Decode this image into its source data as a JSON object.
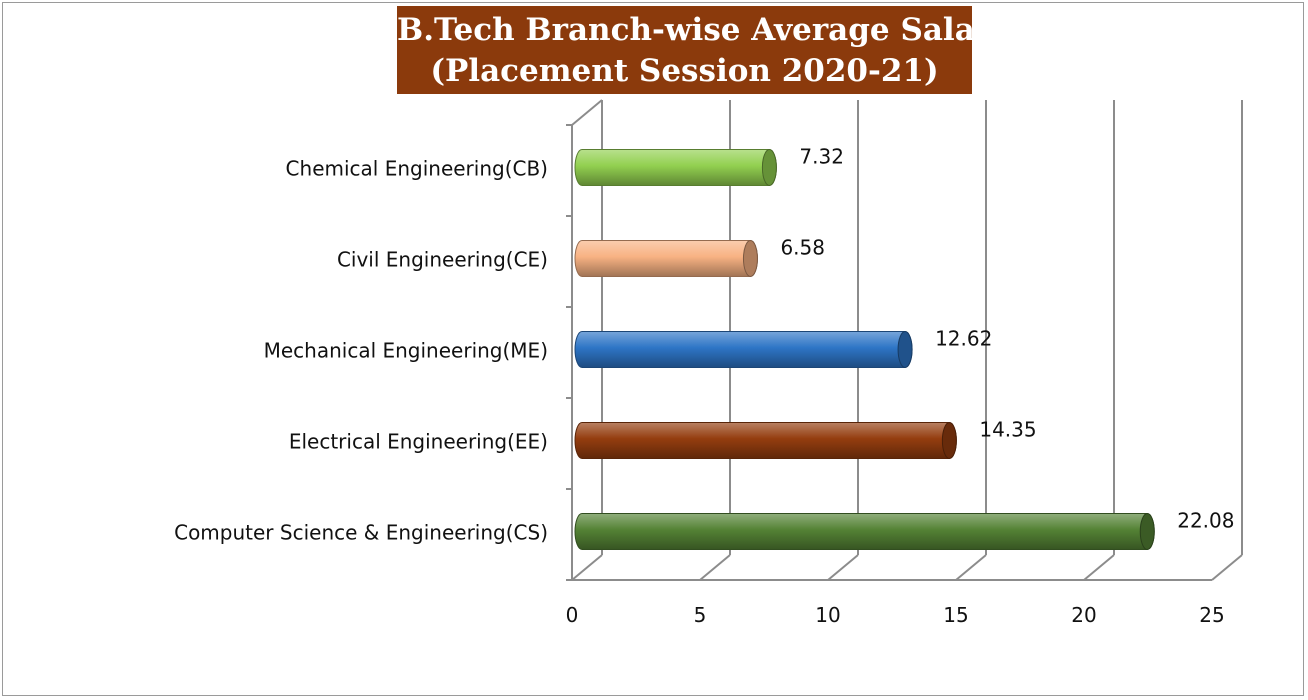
{
  "chart_data": {
    "type": "bar",
    "orientation": "horizontal",
    "title_line1": "B.Tech Branch-wise Average Salary",
    "title_line2": "(Placement Session 2020-21)",
    "categories": [
      "Chemical Engineering(CB)",
      "Civil Engineering(CE)",
      "Mechanical Engineering(ME)",
      "Electrical Engineering(EE)",
      "Computer Science & Engineering(CS)"
    ],
    "values": [
      7.32,
      6.58,
      12.62,
      14.35,
      22.08
    ],
    "value_labels": [
      "7.32",
      "6.58",
      "12.62",
      "14.35",
      "22.08"
    ],
    "colors": [
      "#92d050",
      "#f8b283",
      "#2e75c6",
      "#943d0f",
      "#548235"
    ],
    "xlim": [
      0,
      25
    ],
    "xticks": [
      "0",
      "5",
      "10",
      "15",
      "20",
      "25"
    ],
    "grid": true,
    "legend": "none"
  }
}
